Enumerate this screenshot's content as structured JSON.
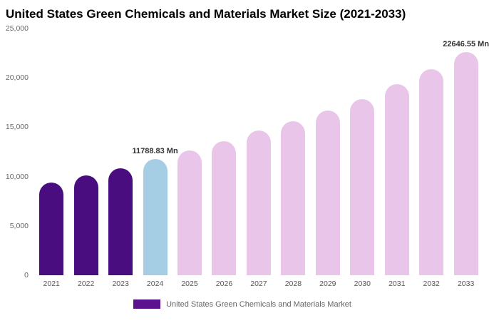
{
  "chart_data": {
    "type": "bar",
    "title": "United States Green Chemicals and Materials Market Size (2021-2033)",
    "xlabel": "",
    "ylabel": "",
    "ylim": [
      0,
      25000
    ],
    "grid": false,
    "legend_position": "bottom",
    "categories": [
      "2021",
      "2022",
      "2023",
      "2024",
      "2025",
      "2026",
      "2027",
      "2028",
      "2029",
      "2030",
      "2031",
      "2032",
      "2033"
    ],
    "values": [
      9390,
      10110,
      10840,
      11788.83,
      12640,
      13580,
      14660,
      15600,
      16690,
      17850,
      19360,
      20880,
      22646.55
    ],
    "color_keys": [
      "historical",
      "historical",
      "historical",
      "highlight",
      "forecast",
      "forecast",
      "forecast",
      "forecast",
      "forecast",
      "forecast",
      "forecast",
      "forecast",
      "forecast"
    ],
    "colors": {
      "historical": "#4a0d80",
      "highlight": "#a5cde3",
      "forecast": "#e9c6e9"
    },
    "yticks": [
      {
        "value": 25000,
        "label": "25,000"
      },
      {
        "value": 20000,
        "label": "20,000"
      },
      {
        "value": 15000,
        "label": "15,000"
      },
      {
        "value": 10000,
        "label": "10,000"
      },
      {
        "value": 5000,
        "label": "5,000"
      },
      {
        "value": 0,
        "label": "0"
      }
    ],
    "annotations": [
      {
        "category": "2024",
        "text": "11788.83 Mn"
      },
      {
        "category": "2033",
        "text": "22646.55 Mn"
      }
    ],
    "legend": {
      "label": "United States Green Chemicals and Materials Market",
      "color": "#5c128c"
    }
  }
}
